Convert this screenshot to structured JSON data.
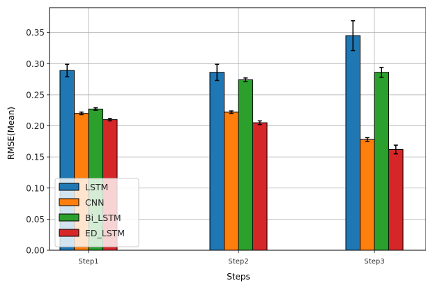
{
  "chart_data": {
    "type": "bar",
    "title": "",
    "xlabel": "Steps",
    "ylabel": "RMSE(Mean)",
    "categories": [
      "Step1",
      "Step2",
      "Step3"
    ],
    "ylim": [
      0,
      0.39
    ],
    "yticks": [
      "0.00",
      "0.05",
      "0.10",
      "0.15",
      "0.20",
      "0.25",
      "0.30",
      "0.35"
    ],
    "grid": true,
    "legend_position": "lower-left",
    "series": [
      {
        "name": "LSTM",
        "color": "#1f77b4",
        "values": [
          0.289,
          0.286,
          0.345
        ],
        "errors": [
          0.01,
          0.013,
          0.024
        ]
      },
      {
        "name": "CNN",
        "color": "#ff7f0e",
        "values": [
          0.22,
          0.222,
          0.178
        ],
        "errors": [
          0.002,
          0.002,
          0.003
        ]
      },
      {
        "name": "Bi_LSTM",
        "color": "#2ca02c",
        "values": [
          0.227,
          0.274,
          0.286
        ],
        "errors": [
          0.002,
          0.003,
          0.008
        ]
      },
      {
        "name": "ED_LSTM",
        "color": "#d62728",
        "values": [
          0.21,
          0.205,
          0.162
        ],
        "errors": [
          0.002,
          0.003,
          0.007
        ]
      }
    ]
  }
}
